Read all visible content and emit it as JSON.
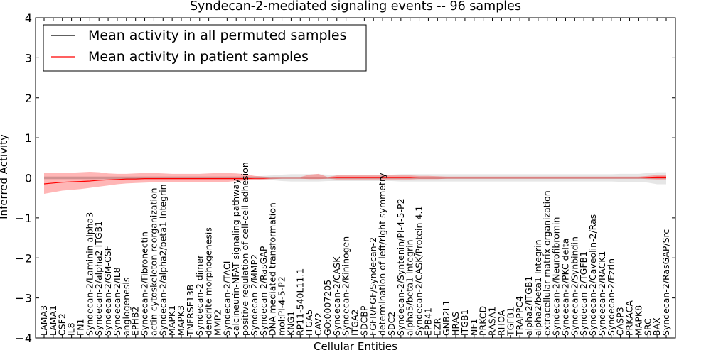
{
  "chart_data": {
    "type": "line",
    "title": "Syndecan-2-mediated signaling events -- 96 samples",
    "xlabel": "Cellular Entities",
    "ylabel": "Inferred Activity",
    "ylim": [
      -4,
      4
    ],
    "yticks": [
      "4",
      "3",
      "2",
      "1",
      "0",
      "−1",
      "−2",
      "−3",
      "−4"
    ],
    "legend_position": "top-left",
    "categories": [
      "LAMA3",
      "LAMA1",
      "CSF2",
      "IL8",
      "FN1",
      "Syndecan-2/Laminin alpha3",
      "Syndecan-2/alpha2 ITGB1",
      "Syndecan-2/GM-CSF",
      "Syndecan-2/IL8",
      "angiogenesis",
      "EPHB2",
      "Syndecan-2/Fibronectin",
      "actin cytoskeleton reorganization",
      "Syndecan-2/alpha2/beta1 Integrin",
      "MAPK1",
      "MAPK3",
      "TNFRSF13B",
      "Syndecan-2 dimer",
      "dendrite morphogenesis",
      "MMP2",
      "Syndecan-2/TACI",
      "calcineurin-NFAT signaling pathway",
      "positive regulation of cell-cell adhesion",
      "Syndecan-2/MMP2",
      "Syndecan-2/RasGAP",
      "DNA mediated transformation",
      "mol:PI-4-5-P2",
      "KNG1",
      "RP11-540L11.1",
      "ITGA5",
      "CAV2",
      "GO:0007205",
      "Syndecan-2/CASK",
      "Syndecan-2/Kininogen",
      "ITGA2",
      "SDCBP",
      "FGFR/FGF/Syndecan-2",
      "determination of left/right symmetry",
      "SDC2",
      "Syndecan-2/Syntenin/PI-4-5-P2",
      "alpha5/beta1 Integrin",
      "Syndecan-2/CASK/Protein 4.1",
      "EPB41",
      "EZR",
      "GNB2L1",
      "HRAS",
      "ITGB1",
      "NF1",
      "PRKCD",
      "RASA1",
      "RHOA",
      "TGFB1",
      "TRAPPC4",
      "alpha2/ITGB1",
      "alpha2/beta1 Integrin",
      "extracellular matrix organization",
      "Syndecan-2/Neurofibromin",
      "Syndecan-2/PKC delta",
      "Syndecan-2/Synbindin",
      "Syndecan-2/TGFB1",
      "Syndecan-2/Caveolin-2/Ras",
      "Syndecan-2/RACK1",
      "Syndecan-2/Ezrin",
      "CASP3",
      "PRKACA",
      "MAPK8",
      "SRC",
      "BAX",
      "Syndecan-2/RasGAP/Src"
    ],
    "series": [
      {
        "name": "Mean activity in all permuted samples",
        "color": "#000000",
        "values": [
          0,
          0,
          0,
          0,
          0,
          0,
          0,
          0,
          0,
          0,
          0,
          0,
          0,
          0,
          0,
          0,
          0,
          0,
          0,
          0,
          0,
          0,
          0,
          0,
          0,
          0,
          0,
          0,
          0,
          0,
          0,
          0,
          0,
          0,
          0,
          0,
          0,
          0,
          0,
          0,
          0,
          0,
          0,
          0,
          0,
          0,
          0,
          0,
          0,
          0,
          0,
          0,
          0,
          0,
          0,
          0,
          0,
          0,
          0,
          0,
          0,
          0,
          0,
          0,
          0,
          0,
          0,
          0,
          0
        ],
        "band_low": [
          -0.04,
          -0.04,
          -0.04,
          -0.04,
          -0.04,
          -0.04,
          -0.04,
          -0.04,
          -0.04,
          -0.04,
          -0.04,
          -0.04,
          -0.04,
          -0.04,
          -0.04,
          -0.04,
          -0.04,
          -0.04,
          -0.04,
          -0.04,
          -0.04,
          -0.04,
          -0.04,
          -0.04,
          -0.05,
          -0.06,
          -0.08,
          -0.09,
          -0.09,
          -0.09,
          -0.09,
          -0.08,
          -0.08,
          -0.08,
          -0.08,
          -0.08,
          -0.08,
          -0.08,
          -0.08,
          -0.09,
          -0.09,
          -0.09,
          -0.09,
          -0.09,
          -0.09,
          -0.09,
          -0.09,
          -0.09,
          -0.09,
          -0.09,
          -0.09,
          -0.09,
          -0.09,
          -0.09,
          -0.09,
          -0.09,
          -0.09,
          -0.09,
          -0.09,
          -0.09,
          -0.09,
          -0.09,
          -0.09,
          -0.1,
          -0.1,
          -0.1,
          -0.12,
          -0.16,
          -0.16
        ],
        "band_high": [
          0.04,
          0.04,
          0.04,
          0.04,
          0.04,
          0.04,
          0.04,
          0.04,
          0.04,
          0.04,
          0.04,
          0.04,
          0.04,
          0.04,
          0.04,
          0.04,
          0.04,
          0.04,
          0.04,
          0.04,
          0.04,
          0.04,
          0.04,
          0.04,
          0.05,
          0.06,
          0.08,
          0.09,
          0.09,
          0.09,
          0.09,
          0.08,
          0.08,
          0.08,
          0.08,
          0.08,
          0.08,
          0.08,
          0.08,
          0.09,
          0.09,
          0.09,
          0.09,
          0.09,
          0.09,
          0.09,
          0.09,
          0.09,
          0.09,
          0.09,
          0.09,
          0.09,
          0.09,
          0.09,
          0.09,
          0.09,
          0.09,
          0.09,
          0.09,
          0.09,
          0.09,
          0.09,
          0.09,
          0.1,
          0.1,
          0.1,
          0.12,
          0.14,
          0.14
        ]
      },
      {
        "name": "Mean activity in patient samples",
        "color": "#ff0000",
        "values": [
          -0.15,
          -0.13,
          -0.11,
          -0.1,
          -0.09,
          -0.08,
          -0.06,
          -0.05,
          -0.04,
          -0.03,
          -0.03,
          -0.02,
          -0.02,
          -0.02,
          -0.02,
          -0.02,
          -0.02,
          -0.02,
          -0.02,
          -0.02,
          -0.02,
          -0.02,
          -0.02,
          -0.01,
          -0.01,
          0,
          0,
          0,
          0,
          0,
          0,
          0,
          0.01,
          0.01,
          0.01,
          0.01,
          0.01,
          0.01,
          0.01,
          0.01,
          0.01,
          0,
          0,
          0,
          0,
          0,
          0,
          0,
          0,
          0,
          0,
          0,
          0,
          0,
          0,
          0,
          0,
          0,
          0,
          0,
          0,
          0,
          0,
          0,
          0,
          0,
          0.01,
          0.02,
          0.02
        ],
        "band_low": [
          -0.4,
          -0.36,
          -0.32,
          -0.3,
          -0.28,
          -0.25,
          -0.22,
          -0.19,
          -0.16,
          -0.14,
          -0.13,
          -0.12,
          -0.11,
          -0.1,
          -0.1,
          -0.1,
          -0.1,
          -0.1,
          -0.1,
          -0.1,
          -0.1,
          -0.08,
          -0.07,
          -0.05,
          -0.04,
          -0.03,
          -0.02,
          -0.02,
          -0.02,
          -0.03,
          -0.03,
          -0.02,
          -0.04,
          -0.04,
          -0.04,
          -0.04,
          -0.04,
          -0.04,
          -0.04,
          -0.04,
          -0.04,
          -0.03,
          -0.03,
          -0.03,
          -0.02,
          -0.02,
          -0.02,
          -0.02,
          -0.02,
          -0.02,
          -0.02,
          -0.02,
          -0.02,
          -0.02,
          -0.02,
          -0.02,
          -0.02,
          -0.02,
          -0.02,
          -0.02,
          -0.02,
          -0.02,
          -0.02,
          -0.02,
          -0.02,
          -0.02,
          -0.03,
          -0.04,
          -0.04
        ],
        "band_high": [
          0.12,
          0.12,
          0.12,
          0.13,
          0.14,
          0.15,
          0.14,
          0.11,
          0.1,
          0.1,
          0.11,
          0.12,
          0.12,
          0.11,
          0.1,
          0.1,
          0.1,
          0.1,
          0.11,
          0.12,
          0.12,
          0.11,
          0.09,
          0.05,
          0.03,
          0.02,
          0.02,
          0.02,
          0.02,
          0.08,
          0.1,
          0.02,
          0.06,
          0.06,
          0.06,
          0.06,
          0.06,
          0.06,
          0.06,
          0.06,
          0.06,
          0.05,
          0.05,
          0.04,
          0.03,
          0.03,
          0.03,
          0.03,
          0.03,
          0.03,
          0.03,
          0.03,
          0.03,
          0.03,
          0.03,
          0.03,
          0.03,
          0.03,
          0.03,
          0.03,
          0.03,
          0.03,
          0.03,
          0.03,
          0.03,
          0.03,
          0.05,
          0.07,
          0.07
        ]
      }
    ]
  }
}
